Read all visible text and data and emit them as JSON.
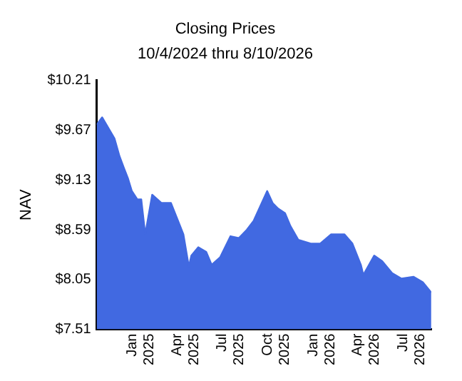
{
  "chart_data": {
    "type": "area",
    "title": "Closing Prices",
    "subtitle": "10/4/2024 thru 8/10/2026",
    "ylabel": "NAV",
    "x": [
      "2024-10-04",
      "2024-10-15",
      "2024-11-09",
      "2024-11-19",
      "2024-11-28",
      "2024-12-06",
      "2024-12-14",
      "2024-12-25",
      "2025-01-02",
      "2025-01-10",
      "2025-01-24",
      "2025-02-12",
      "2025-03-03",
      "2025-03-14",
      "2025-03-28",
      "2025-04-08",
      "2025-04-13",
      "2025-04-27",
      "2025-05-13",
      "2025-05-24",
      "2025-06-10",
      "2025-07-01",
      "2025-07-18",
      "2025-08-03",
      "2025-08-17",
      "2025-09-13",
      "2025-09-24",
      "2025-10-05",
      "2025-10-19",
      "2025-10-30",
      "2025-11-15",
      "2025-12-10",
      "2025-12-29",
      "2026-01-20",
      "2026-02-16",
      "2026-03-04",
      "2026-03-21",
      "2026-03-26",
      "2026-04-17",
      "2026-05-03",
      "2026-05-23",
      "2026-06-11",
      "2026-07-05",
      "2026-07-24",
      "2026-08-10"
    ],
    "series": [
      {
        "color": "#4169e1",
        "values": [
          9.73,
          9.81,
          9.58,
          9.39,
          9.26,
          9.15,
          9.01,
          8.92,
          8.92,
          8.54,
          8.97,
          8.88,
          8.88,
          8.73,
          8.54,
          8.19,
          8.31,
          8.4,
          8.35,
          8.21,
          8.29,
          8.52,
          8.5,
          8.59,
          8.69,
          9.01,
          8.88,
          8.82,
          8.77,
          8.63,
          8.48,
          8.44,
          8.44,
          8.54,
          8.54,
          8.44,
          8.21,
          8.1,
          8.31,
          8.25,
          8.12,
          8.06,
          8.08,
          8.02,
          7.91
        ]
      }
    ],
    "xlim": [
      "2024-10-04",
      "2026-08-10"
    ],
    "xticks": [
      {
        "value": "2025-01-01",
        "label": "Jan 2025"
      },
      {
        "value": "2025-04-01",
        "label": "Apr 2025"
      },
      {
        "value": "2025-07-01",
        "label": "Jul 2025"
      },
      {
        "value": "2025-10-01",
        "label": "Oct 2025"
      },
      {
        "value": "2026-01-01",
        "label": "Jan 2026"
      },
      {
        "value": "2026-04-01",
        "label": "Apr 2026"
      },
      {
        "value": "2026-07-01",
        "label": "Jul 2026"
      }
    ],
    "ylim": [
      7.51,
      10.21
    ],
    "yticks": [
      {
        "value": 7.51,
        "label": "$7.51"
      },
      {
        "value": 8.05,
        "label": "$8.05"
      },
      {
        "value": 8.59,
        "label": "$8.59"
      },
      {
        "value": 9.13,
        "label": "$9.13"
      },
      {
        "value": 9.67,
        "label": "$9.67"
      },
      {
        "value": 10.21,
        "label": "$10.21"
      }
    ],
    "grid": false,
    "legend": false
  }
}
